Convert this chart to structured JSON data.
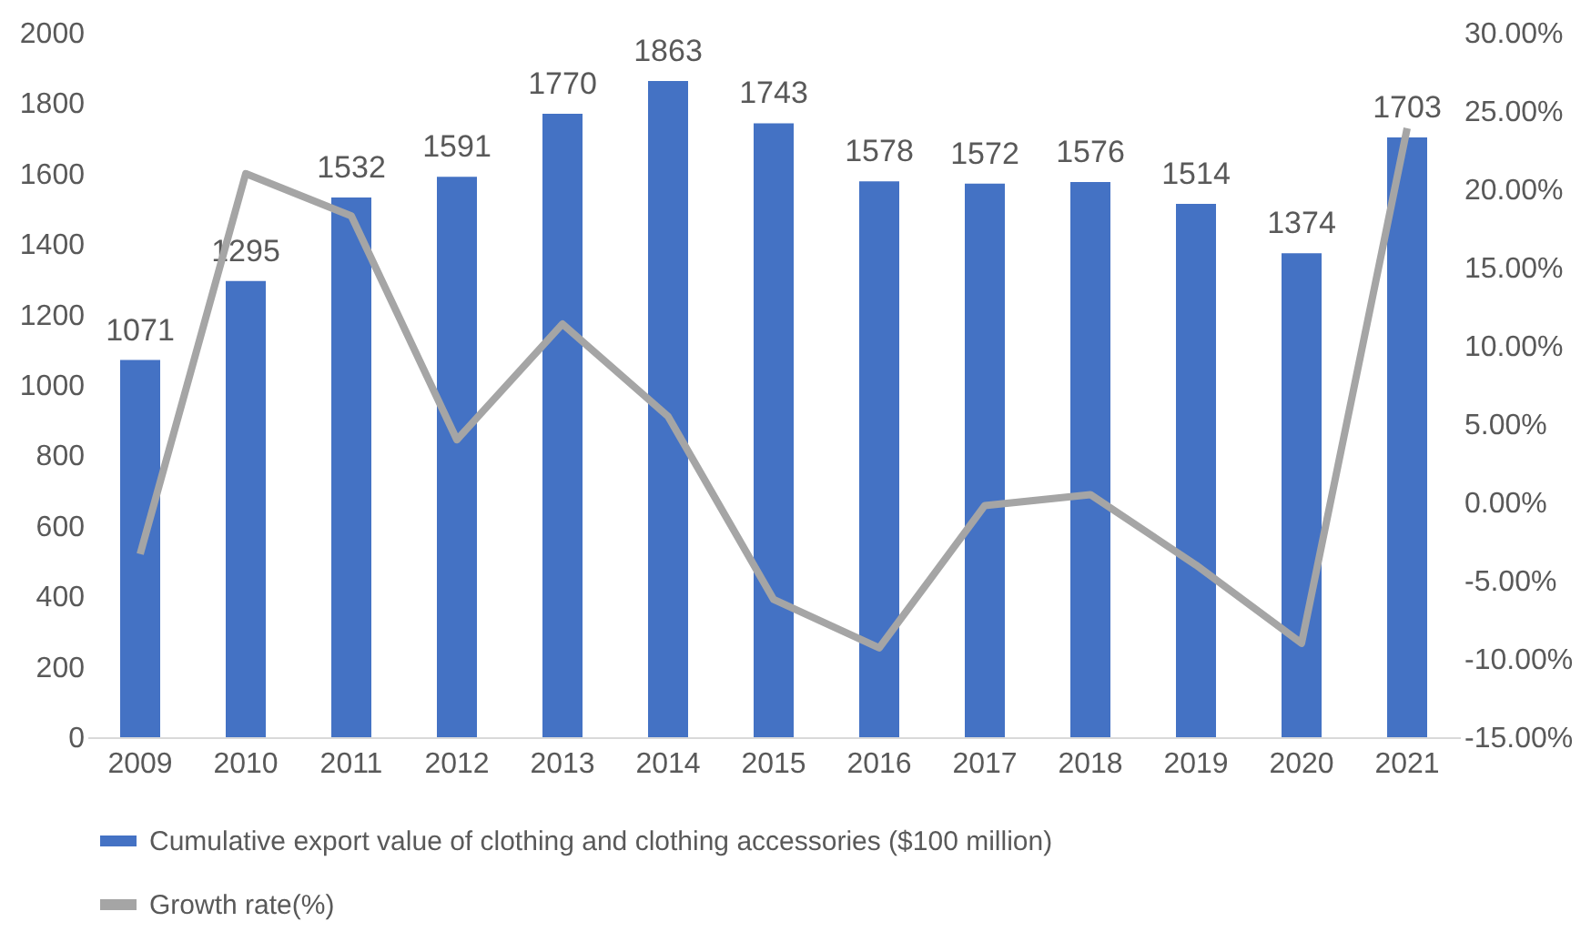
{
  "chart_data": {
    "type": "bar",
    "categories": [
      "2009",
      "2010",
      "2011",
      "2012",
      "2013",
      "2014",
      "2015",
      "2016",
      "2017",
      "2018",
      "2019",
      "2020",
      "2021"
    ],
    "series": [
      {
        "name": "Cumulative export value of clothing and clothing accessories ($100 million)",
        "type": "bar",
        "color": "#4472c4",
        "values": [
          1071,
          1295,
          1532,
          1591,
          1770,
          1863,
          1743,
          1578,
          1572,
          1576,
          1514,
          1374,
          1703
        ],
        "value_labels": [
          "1071",
          "1295",
          "1532",
          "1591",
          "1770",
          "1863",
          "1743",
          "1578",
          "1572",
          "1576",
          "1514",
          "1374",
          "1703"
        ]
      },
      {
        "name": "Growth rate(%)",
        "type": "line",
        "axis": "y2",
        "color": "#a5a5a5",
        "values": [
          -3.3,
          21.0,
          18.3,
          4.0,
          11.4,
          5.5,
          -6.2,
          -9.3,
          -0.2,
          0.5,
          -4.0,
          -9.0,
          23.9
        ]
      }
    ],
    "ylim": [
      0,
      2000
    ],
    "yticks": [
      0,
      200,
      400,
      600,
      800,
      1000,
      1200,
      1400,
      1600,
      1800,
      2000
    ],
    "y2lim": [
      -15,
      30
    ],
    "y2ticks": [
      {
        "value": -15,
        "label": "-15.00%"
      },
      {
        "value": -10,
        "label": "-10.00%"
      },
      {
        "value": -5,
        "label": "-5.00%"
      },
      {
        "value": 0,
        "label": "0.00%"
      },
      {
        "value": 5,
        "label": "5.00%"
      },
      {
        "value": 10,
        "label": "10.00%"
      },
      {
        "value": 15,
        "label": "15.00%"
      },
      {
        "value": 20,
        "label": "20.00%"
      },
      {
        "value": 25,
        "label": "25.00%"
      },
      {
        "value": 30,
        "label": "30.00%"
      }
    ],
    "legend": "bottom",
    "grid": false
  }
}
